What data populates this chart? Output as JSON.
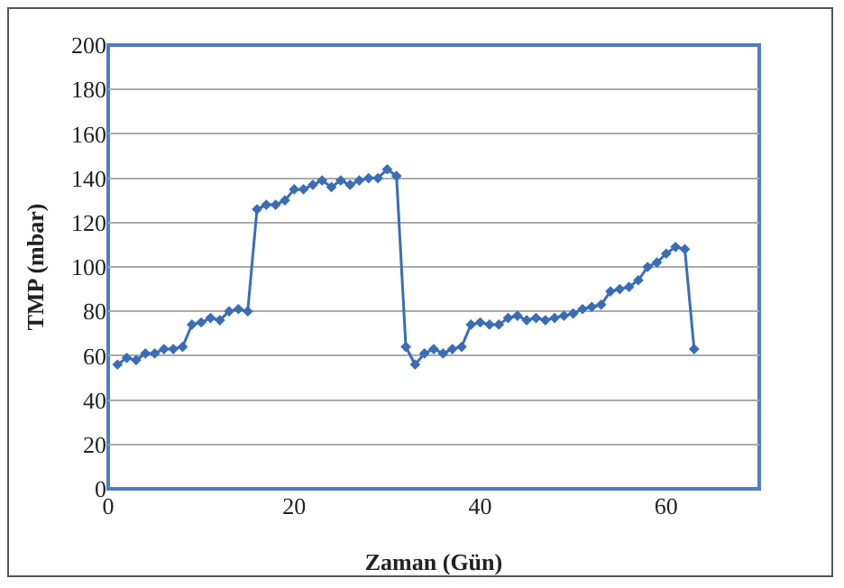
{
  "chart_data": {
    "type": "line",
    "xlabel": "Zaman (Gün)",
    "ylabel": "TMP (mbar)",
    "x": [
      1,
      2,
      3,
      4,
      5,
      6,
      7,
      8,
      9,
      10,
      11,
      12,
      13,
      14,
      15,
      16,
      17,
      18,
      19,
      20,
      21,
      22,
      23,
      24,
      25,
      26,
      27,
      28,
      29,
      30,
      31,
      32,
      33,
      34,
      35,
      36,
      37,
      38,
      39,
      40,
      41,
      42,
      43,
      44,
      45,
      46,
      47,
      48,
      49,
      50,
      51,
      52,
      53,
      54,
      55,
      56,
      57,
      58,
      59,
      60,
      61,
      62,
      63
    ],
    "series": [
      {
        "color": "#3a6db5",
        "values": [
          56,
          59,
          58,
          61,
          61,
          63,
          63,
          64,
          74,
          75,
          77,
          76,
          80,
          81,
          80,
          126,
          128,
          128,
          130,
          135,
          135,
          137,
          139,
          136,
          139,
          137,
          139,
          140,
          140,
          144,
          141,
          64,
          56,
          61,
          63,
          61,
          63,
          64,
          74,
          75,
          74,
          74,
          77,
          78,
          76,
          77,
          76,
          77,
          78,
          79,
          81,
          82,
          83,
          89,
          90,
          91,
          94,
          100,
          102,
          106,
          109,
          108,
          63
        ]
      }
    ],
    "xlim": [
      0,
      70
    ],
    "xticks": [
      0,
      20,
      40,
      60
    ],
    "ylim": [
      0,
      200
    ],
    "yticks": [
      0,
      20,
      40,
      60,
      80,
      100,
      120,
      140,
      160,
      180,
      200
    ],
    "grid": "y",
    "marker": "diamond",
    "line_style": "solid"
  }
}
